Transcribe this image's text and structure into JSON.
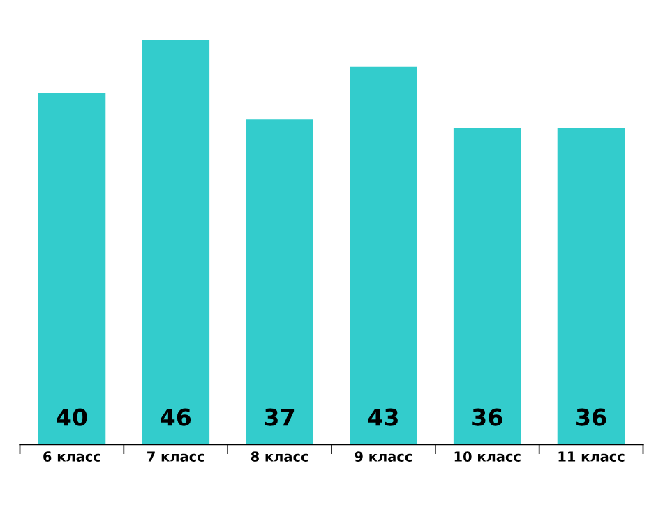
{
  "chart_data": {
    "type": "bar",
    "categories": [
      "6 класс",
      "7 класс",
      "8 класс",
      "9 класс",
      "10 класс",
      "11 класс"
    ],
    "values": [
      40,
      46,
      37,
      43,
      36,
      36
    ],
    "color": "#33cccc",
    "data_labels": true
  }
}
